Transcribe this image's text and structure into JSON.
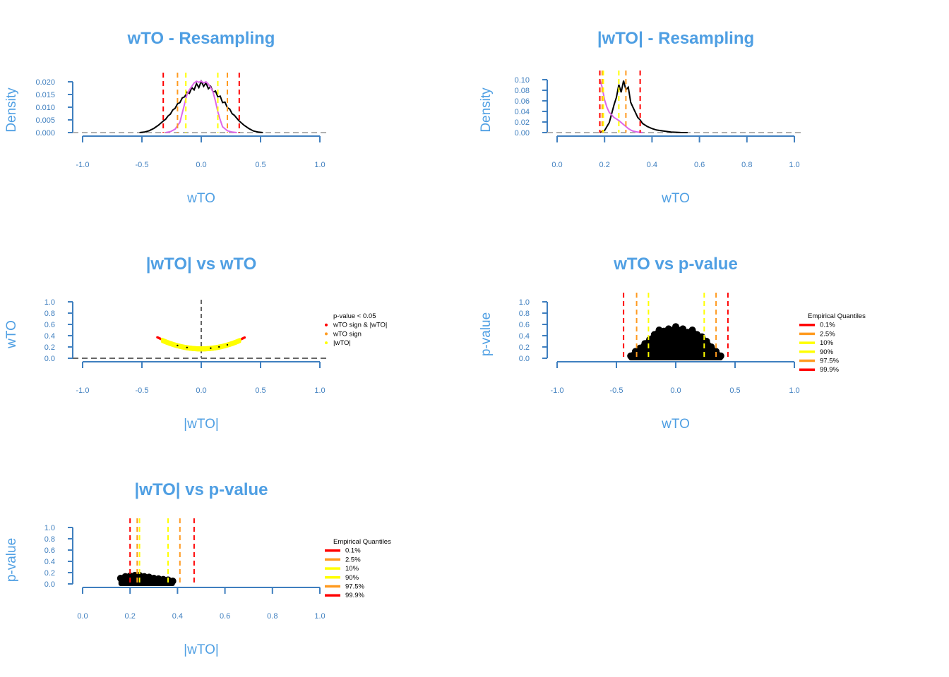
{
  "colors": {
    "title": "#4f9fe3",
    "axis": "#3f7fbf",
    "tick_label": "#3f7fbf",
    "red": "#ff0000",
    "orange": "#ff9a1f",
    "yellow": "#ffff00",
    "violet": "#dd66e8",
    "grey_dash": "#b0b0b0",
    "dark_grey": "#666666",
    "black": "#000000"
  },
  "chart_data": [
    {
      "id": "p1",
      "type": "line",
      "title": "wTO - Resampling",
      "xlabel": "wTO",
      "ylabel": "Density",
      "xlim": [
        -1.0,
        1.0
      ],
      "ylim": [
        0,
        0.022
      ],
      "x_ticks": [
        "-1.0",
        "-0.5",
        "0.0",
        "0.5",
        "1.0"
      ],
      "y_ticks": [
        "0.000",
        "0.005",
        "0.010",
        "0.015",
        "0.020"
      ],
      "series": [
        {
          "color": "black",
          "x": [
            -0.52,
            -0.48,
            -0.44,
            -0.4,
            -0.36,
            -0.32,
            -0.3,
            -0.28,
            -0.26,
            -0.24,
            -0.22,
            -0.2,
            -0.18,
            -0.16,
            -0.14,
            -0.12,
            -0.1,
            -0.08,
            -0.06,
            -0.04,
            -0.02,
            0.0,
            0.02,
            0.04,
            0.06,
            0.08,
            0.1,
            0.12,
            0.14,
            0.16,
            0.18,
            0.2,
            0.22,
            0.24,
            0.26,
            0.28,
            0.3,
            0.32,
            0.36,
            0.4,
            0.44,
            0.48,
            0.52
          ],
          "y": [
            0.0,
            0.0002,
            0.0008,
            0.0018,
            0.0032,
            0.005,
            0.0058,
            0.0072,
            0.008,
            0.0098,
            0.0105,
            0.0125,
            0.013,
            0.015,
            0.0155,
            0.0175,
            0.017,
            0.0195,
            0.0185,
            0.0212,
            0.0195,
            0.0222,
            0.02,
            0.0215,
            0.019,
            0.02,
            0.0175,
            0.018,
            0.0155,
            0.0158,
            0.013,
            0.0132,
            0.0108,
            0.0102,
            0.0082,
            0.0075,
            0.0062,
            0.005,
            0.0032,
            0.0018,
            0.0007,
            0.0002,
            0.0
          ]
        },
        {
          "color": "violet",
          "x": [
            -0.3,
            -0.26,
            -0.22,
            -0.18,
            -0.16,
            -0.14,
            -0.12,
            -0.1,
            -0.08,
            -0.06,
            -0.04,
            -0.02,
            0.0,
            0.02,
            0.04,
            0.06,
            0.08,
            0.1,
            0.12,
            0.14,
            0.16,
            0.18,
            0.22,
            0.26,
            0.3
          ],
          "y": [
            0.0,
            0.0004,
            0.0015,
            0.0045,
            0.0085,
            0.0125,
            0.0165,
            0.0185,
            0.02,
            0.0215,
            0.0222,
            0.0218,
            0.0222,
            0.0215,
            0.022,
            0.021,
            0.0195,
            0.0175,
            0.0135,
            0.009,
            0.0055,
            0.0025,
            0.0008,
            0.0002,
            0.0
          ]
        }
      ],
      "vlines": [
        {
          "x": -0.32,
          "color": "red"
        },
        {
          "x": -0.2,
          "color": "orange"
        },
        {
          "x": -0.13,
          "color": "yellow"
        },
        {
          "x": 0.14,
          "color": "yellow"
        },
        {
          "x": 0.22,
          "color": "orange"
        },
        {
          "x": 0.32,
          "color": "red"
        }
      ],
      "hline": {
        "y": 0.0,
        "color": "grey_dash"
      }
    },
    {
      "id": "p2",
      "type": "line",
      "title": "|wTO| - Resampling",
      "xlabel": "wTO",
      "ylabel": "Density",
      "xlim": [
        0.0,
        1.0
      ],
      "ylim": [
        0,
        0.105
      ],
      "x_ticks": [
        "0.0",
        "0.2",
        "0.4",
        "0.6",
        "0.8",
        "1.0"
      ],
      "y_ticks": [
        "0.00",
        "0.02",
        "0.04",
        "0.06",
        "0.08",
        "0.10"
      ],
      "series": [
        {
          "color": "black",
          "x": [
            0.18,
            0.2,
            0.22,
            0.24,
            0.25,
            0.26,
            0.27,
            0.28,
            0.29,
            0.3,
            0.31,
            0.32,
            0.33,
            0.34,
            0.35,
            0.36,
            0.38,
            0.4,
            0.42,
            0.45,
            0.48,
            0.52,
            0.55
          ],
          "y": [
            0.0,
            0.004,
            0.02,
            0.055,
            0.07,
            0.095,
            0.08,
            0.103,
            0.085,
            0.09,
            0.06,
            0.05,
            0.04,
            0.03,
            0.025,
            0.018,
            0.012,
            0.008,
            0.005,
            0.003,
            0.001,
            0.0002,
            0.0
          ]
        },
        {
          "color": "violet",
          "x": [
            0.18,
            0.19,
            0.2,
            0.21,
            0.22,
            0.23,
            0.24,
            0.25,
            0.26,
            0.27,
            0.28,
            0.29,
            0.3,
            0.31,
            0.32,
            0.33,
            0.34,
            0.36
          ],
          "y": [
            0.105,
            0.09,
            0.065,
            0.05,
            0.04,
            0.035,
            0.03,
            0.027,
            0.024,
            0.02,
            0.016,
            0.012,
            0.008,
            0.005,
            0.003,
            0.002,
            0.001,
            0.0
          ]
        }
      ],
      "vlines": [
        {
          "x": 0.18,
          "color": "red"
        },
        {
          "x": 0.19,
          "color": "orange"
        },
        {
          "x": 0.195,
          "color": "yellow"
        },
        {
          "x": 0.26,
          "color": "yellow"
        },
        {
          "x": 0.29,
          "color": "orange"
        },
        {
          "x": 0.35,
          "color": "red"
        }
      ],
      "hline": {
        "y": 0.0,
        "color": "grey_dash"
      }
    },
    {
      "id": "p3",
      "type": "scatter",
      "title": "|wTO| vs wTO",
      "xlabel": "|wTO|",
      "ylabel": "wTO",
      "xlim": [
        -1.0,
        1.0
      ],
      "ylim": [
        0.0,
        1.0
      ],
      "x_ticks": [
        "-1.0",
        "-0.5",
        "0.0",
        "0.5",
        "1.0"
      ],
      "y_ticks": [
        "0.0",
        "0.2",
        "0.4",
        "0.6",
        "0.8",
        "1.0"
      ],
      "curve": {
        "center": 0.0,
        "base": 0.18,
        "k": 1.4,
        "xmin": -0.37,
        "xmax": 0.37
      },
      "vline": {
        "x": 0.0,
        "color": "dark_grey"
      },
      "hline": {
        "y": 0.0,
        "color": "dark_grey"
      },
      "legend": {
        "title": "p-value < 0.05",
        "entries": [
          {
            "label": "wTO sign & |wTO|",
            "color": "red"
          },
          {
            "label": "wTO sign",
            "color": "orange"
          },
          {
            "label": "|wTO|",
            "color": "yellow"
          }
        ]
      }
    },
    {
      "id": "p4",
      "type": "scatter",
      "title": "wTO vs p-value",
      "xlabel": "wTO",
      "ylabel": "p-value",
      "xlim": [
        -1.0,
        1.0
      ],
      "ylim": [
        0.0,
        1.0
      ],
      "x_ticks": [
        "-1.0",
        "-0.5",
        "0.0",
        "0.5",
        "1.0"
      ],
      "y_ticks": [
        "0.0",
        "0.2",
        "0.4",
        "0.6",
        "0.8",
        "1.0"
      ],
      "blob": {
        "x": [
          -0.38,
          -0.34,
          -0.3,
          -0.26,
          -0.22,
          -0.18,
          -0.14,
          -0.1,
          -0.06,
          -0.02,
          0.0,
          0.02,
          0.06,
          0.1,
          0.14,
          0.18,
          0.22,
          0.26,
          0.3,
          0.34,
          0.38
        ],
        "y": [
          0.04,
          0.12,
          0.18,
          0.26,
          0.33,
          0.42,
          0.5,
          0.48,
          0.52,
          0.5,
          0.56,
          0.5,
          0.52,
          0.46,
          0.5,
          0.42,
          0.38,
          0.3,
          0.2,
          0.12,
          0.04
        ]
      },
      "vlines": [
        {
          "x": -0.44,
          "color": "red"
        },
        {
          "x": -0.33,
          "color": "orange"
        },
        {
          "x": -0.23,
          "color": "yellow"
        },
        {
          "x": 0.24,
          "color": "yellow"
        },
        {
          "x": 0.34,
          "color": "orange"
        },
        {
          "x": 0.44,
          "color": "red"
        }
      ],
      "legend": {
        "title": "Empirical Quantiles",
        "entries": [
          {
            "label": "0.1%",
            "color": "red"
          },
          {
            "label": "2.5%",
            "color": "orange"
          },
          {
            "label": "10%",
            "color": "yellow"
          },
          {
            "label": "90%",
            "color": "yellow"
          },
          {
            "label": "97.5%",
            "color": "orange"
          },
          {
            "label": "99.9%",
            "color": "red"
          }
        ]
      }
    },
    {
      "id": "p5",
      "type": "scatter",
      "title": "|wTO| vs p-value",
      "xlabel": "|wTO|",
      "ylabel": "p-value",
      "xlim": [
        0.0,
        1.0
      ],
      "ylim": [
        0.0,
        1.0
      ],
      "x_ticks": [
        "0.0",
        "0.2",
        "0.4",
        "0.6",
        "0.8",
        "1.0"
      ],
      "y_ticks": [
        "0.0",
        "0.2",
        "0.4",
        "0.6",
        "0.8",
        "1.0"
      ],
      "blob": {
        "x": [
          0.16,
          0.18,
          0.2,
          0.22,
          0.24,
          0.26,
          0.28,
          0.3,
          0.32,
          0.34,
          0.36,
          0.38
        ],
        "y": [
          0.1,
          0.13,
          0.14,
          0.15,
          0.15,
          0.13,
          0.12,
          0.1,
          0.09,
          0.08,
          0.07,
          0.05
        ]
      },
      "vlines": [
        {
          "x": 0.2,
          "color": "red"
        },
        {
          "x": 0.23,
          "color": "orange"
        },
        {
          "x": 0.24,
          "color": "yellow"
        },
        {
          "x": 0.36,
          "color": "yellow"
        },
        {
          "x": 0.41,
          "color": "orange"
        },
        {
          "x": 0.47,
          "color": "red"
        }
      ],
      "legend": {
        "title": "Empirical Quantiles",
        "entries": [
          {
            "label": "0.1%",
            "color": "red"
          },
          {
            "label": "2.5%",
            "color": "orange"
          },
          {
            "label": "10%",
            "color": "yellow"
          },
          {
            "label": "90%",
            "color": "yellow"
          },
          {
            "label": "97.5%",
            "color": "orange"
          },
          {
            "label": "99.9%",
            "color": "red"
          }
        ]
      }
    }
  ]
}
